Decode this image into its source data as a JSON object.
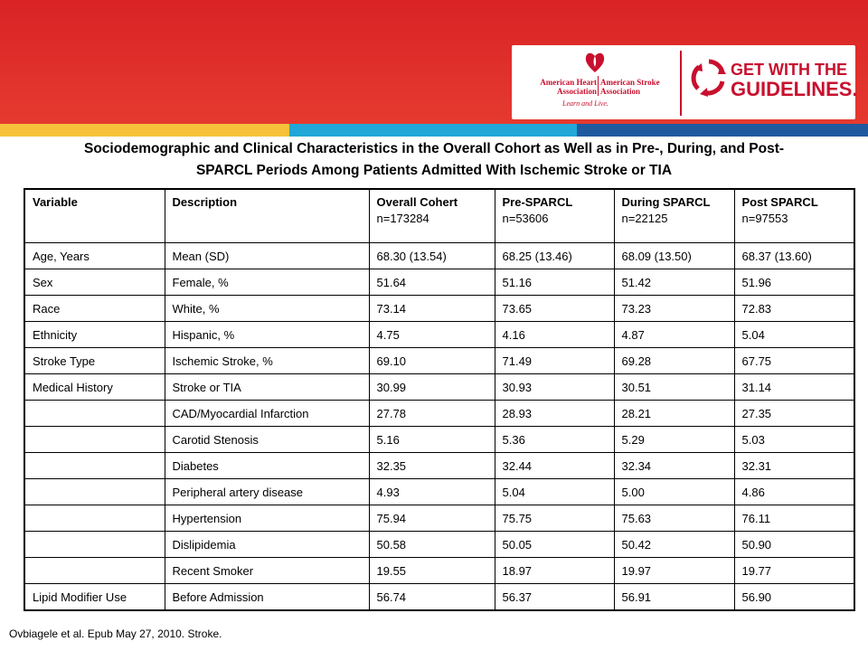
{
  "header": {
    "aha_left_org": "American Heart Association",
    "aha_right_org": "American Stroke Association",
    "aha_tagline": "Learn and Live.",
    "gwtg_line1": "GET WITH THE",
    "gwtg_line2": "GUIDELINES.",
    "brand_red": "#e0302b",
    "stripe_colors": [
      "#f5c23a",
      "#21a7d8",
      "#1f5a9e"
    ]
  },
  "title": {
    "line1": "Sociodemographic and Clinical Characteristics in the Overall Cohort as Well as in Pre-, During, and Post-",
    "line2": "SPARCL Periods Among Patients Admitted With Ischemic Stroke or TIA"
  },
  "table": {
    "columns": [
      {
        "name": "Variable",
        "n": ""
      },
      {
        "name": "Description",
        "n": ""
      },
      {
        "name": "Overall Cohert",
        "n": "n=173284"
      },
      {
        "name": "Pre-SPARCL",
        "n": "n=53606"
      },
      {
        "name": "During SPARCL",
        "n": "n=22125"
      },
      {
        "name": "Post SPARCL",
        "n": "n=97553"
      }
    ],
    "rows": [
      [
        "Age, Years",
        "Mean (SD)",
        "68.30 (13.54)",
        "68.25 (13.46)",
        "68.09 (13.50)",
        "68.37 (13.60)"
      ],
      [
        "Sex",
        "Female, %",
        "51.64",
        "51.16",
        "51.42",
        "51.96"
      ],
      [
        "Race",
        "White, %",
        "73.14",
        "73.65",
        "73.23",
        "72.83"
      ],
      [
        "Ethnicity",
        "Hispanic, %",
        "4.75",
        "4.16",
        "4.87",
        "5.04"
      ],
      [
        "Stroke Type",
        "Ischemic Stroke, %",
        "69.10",
        "71.49",
        "69.28",
        "67.75"
      ],
      [
        "Medical History",
        "Stroke or TIA",
        "30.99",
        "30.93",
        "30.51",
        "31.14"
      ],
      [
        "",
        "CAD/Myocardial Infarction",
        "27.78",
        "28.93",
        "28.21",
        "27.35"
      ],
      [
        "",
        "Carotid Stenosis",
        "5.16",
        "5.36",
        "5.29",
        "5.03"
      ],
      [
        "",
        "Diabetes",
        "32.35",
        "32.44",
        "32.34",
        "32.31"
      ],
      [
        "",
        "Peripheral artery disease",
        "4.93",
        "5.04",
        "5.00",
        "4.86"
      ],
      [
        "",
        "Hypertension",
        "75.94",
        "75.75",
        "75.63",
        "76.11"
      ],
      [
        "",
        "Dislipidemia",
        "50.58",
        "50.05",
        "50.42",
        "50.90"
      ],
      [
        "",
        "Recent Smoker",
        "19.55",
        "18.97",
        "19.97",
        "19.77"
      ],
      [
        "Lipid Modifier Use",
        "Before Admission",
        "56.74",
        "56.37",
        "56.91",
        "56.90"
      ]
    ]
  },
  "citation": "Ovbiagele et al. Epub May 27, 2010. Stroke."
}
